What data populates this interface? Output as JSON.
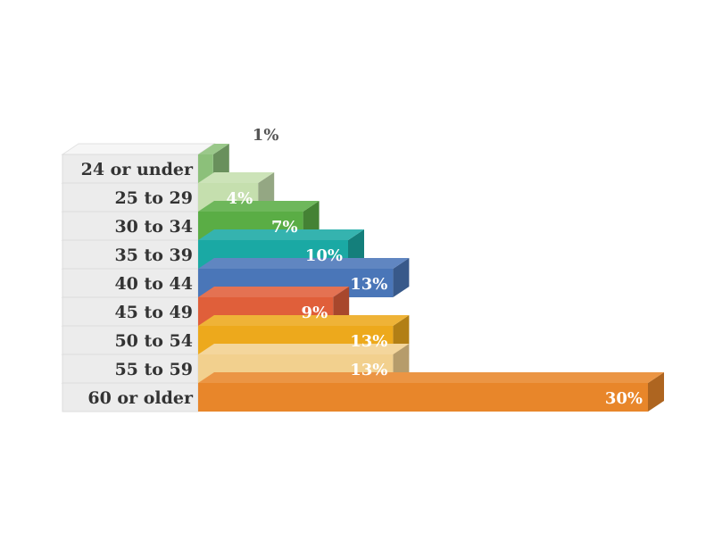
{
  "chart_data": {
    "type": "bar",
    "orientation": "horizontal",
    "style": "3d-stacked-steps",
    "categories": [
      "24 or under",
      "25 to 29",
      "30 to 34",
      "35 to 39",
      "40 to 44",
      "45 to 49",
      "50 to 54",
      "55 to 59",
      "60 or older"
    ],
    "values": [
      1,
      4,
      7,
      10,
      13,
      9,
      13,
      13,
      30
    ],
    "value_labels": [
      "1%",
      "4%",
      "7%",
      "10%",
      "13%",
      "9%",
      "13%",
      "13%",
      "30%"
    ],
    "colors": [
      "#8cc07a",
      "#c5dfae",
      "#5aad45",
      "#1aa9a4",
      "#4a76b8",
      "#e05f3a",
      "#eda91c",
      "#f2d08e",
      "#e8862a"
    ],
    "label_colors": [
      "#555555",
      "#ffffff",
      "#ffffff",
      "#ffffff",
      "#ffffff",
      "#ffffff",
      "#ffffff",
      "#ffffff",
      "#ffffff"
    ],
    "title": "",
    "xlabel": "",
    "ylabel": "",
    "xlim": [
      0,
      30
    ],
    "grid": false,
    "legend": "none"
  }
}
